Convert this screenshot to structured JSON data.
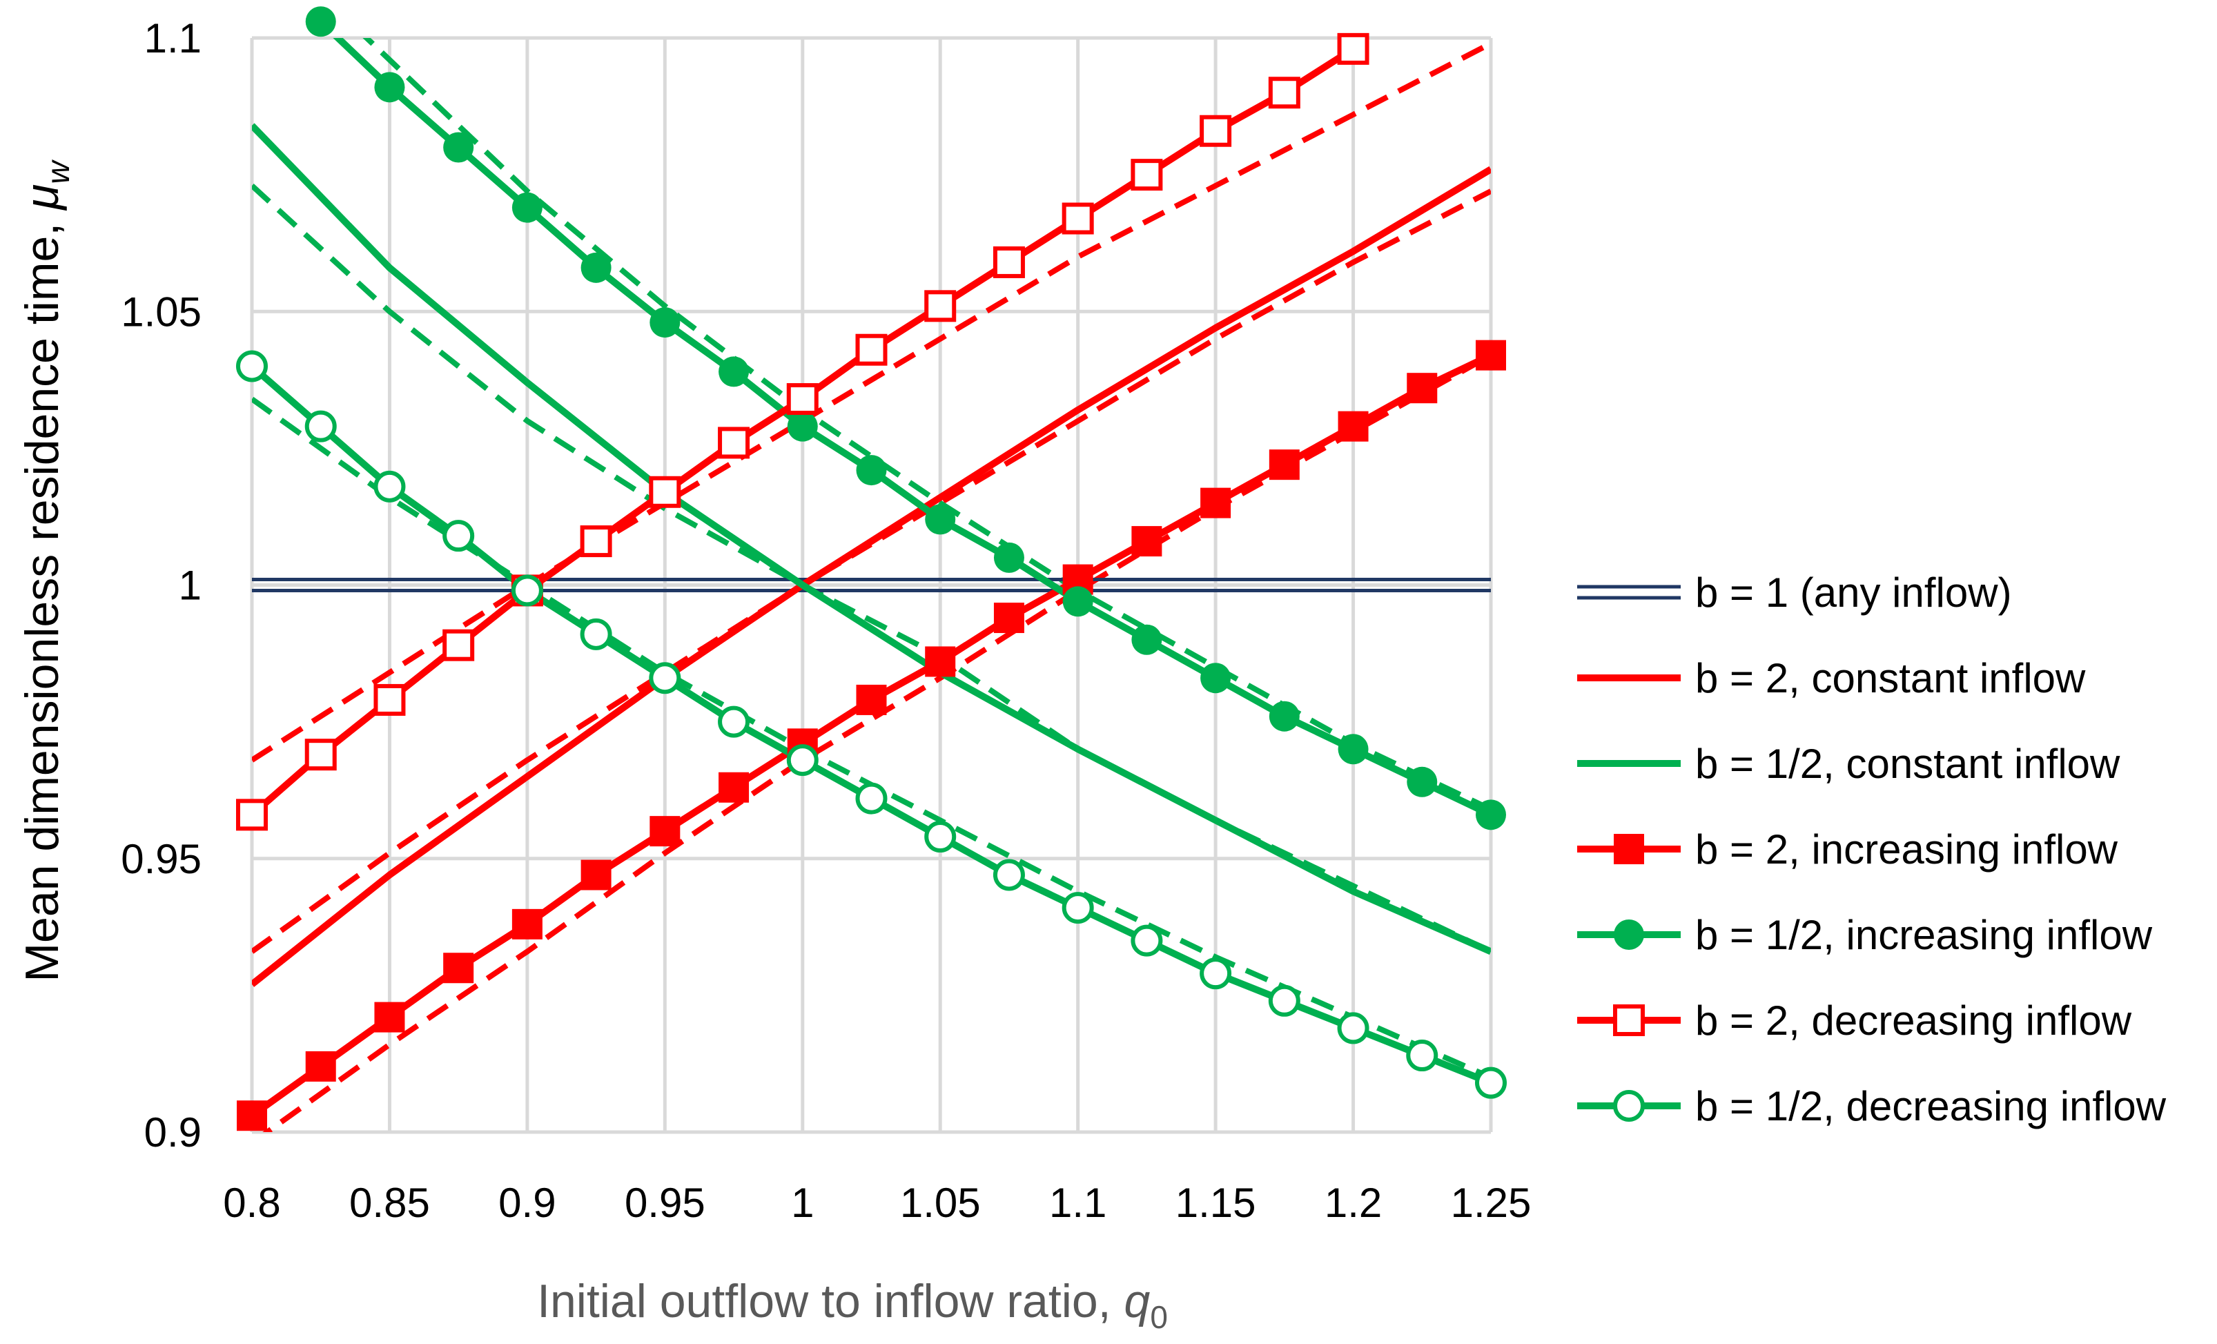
{
  "chart_data": {
    "type": "line",
    "xlabel_main": "Initial outflow to inflow ratio, ",
    "xlabel_symbol": "q",
    "xlabel_sub": "0",
    "ylabel_main": "Mean dimensionless residence time, ",
    "ylabel_symbol": "μ",
    "ylabel_sub": "w",
    "xlim": [
      0.8,
      1.25
    ],
    "ylim": [
      0.9,
      1.1
    ],
    "xticks": [
      0.8,
      0.85,
      0.9,
      0.95,
      1,
      1.05,
      1.1,
      1.15,
      1.2,
      1.25
    ],
    "xtick_labels": [
      "0.8",
      "0.85",
      "0.9",
      "0.95",
      "1",
      "1.05",
      "1.1",
      "1.15",
      "1.2",
      "1.25"
    ],
    "yticks": [
      0.9,
      0.95,
      1,
      1.05,
      1.1
    ],
    "ytick_labels": [
      "0.9",
      "0.95",
      "1",
      "1.05",
      "1.1"
    ],
    "grid": true,
    "legend_position": "right",
    "colors": {
      "red": "#ff0000",
      "green": "#00b050",
      "navy": "#203864",
      "grid": "#d9d9d9"
    },
    "series": [
      {
        "name": "b = 1 (any inflow)",
        "color": "#203864",
        "line": "double",
        "marker": "none",
        "x": [
          0.8,
          1.25
        ],
        "y": [
          1.0,
          1.0
        ]
      },
      {
        "name": "b = 2, constant inflow",
        "color": "#ff0000",
        "line": "solid",
        "marker": "none",
        "x": [
          0.8,
          0.85,
          0.9,
          0.95,
          1.0,
          1.05,
          1.1,
          1.15,
          1.2,
          1.25
        ],
        "y": [
          0.927,
          0.947,
          0.965,
          0.983,
          1.0,
          1.016,
          1.032,
          1.047,
          1.061,
          1.076
        ]
      },
      {
        "name": "b = 1/2, constant inflow",
        "color": "#00b050",
        "line": "solid",
        "marker": "none",
        "x": [
          0.8,
          0.85,
          0.9,
          0.95,
          1.0,
          1.05,
          1.1,
          1.15,
          1.2,
          1.25
        ],
        "y": [
          1.084,
          1.058,
          1.037,
          1.017,
          1.0,
          0.984,
          0.97,
          0.957,
          0.944,
          0.933
        ]
      },
      {
        "name": "b = 2, increasing inflow",
        "color": "#ff0000",
        "line": "solid",
        "marker": "filled-square",
        "x": [
          0.8,
          0.825,
          0.85,
          0.875,
          0.9,
          0.925,
          0.95,
          0.975,
          1.0,
          1.025,
          1.05,
          1.075,
          1.1,
          1.125,
          1.15,
          1.175,
          1.2,
          1.225,
          1.25
        ],
        "y": [
          0.903,
          0.912,
          0.921,
          0.93,
          0.938,
          0.947,
          0.955,
          0.963,
          0.971,
          0.979,
          0.986,
          0.994,
          1.001,
          1.008,
          1.015,
          1.022,
          1.029,
          1.036,
          1.042
        ]
      },
      {
        "name": "b = 1/2, increasing inflow",
        "color": "#00b050",
        "line": "solid",
        "marker": "filled-circle",
        "x": [
          0.8,
          0.825,
          0.85,
          0.875,
          0.9,
          0.925,
          0.95,
          0.975,
          1.0,
          1.025,
          1.05,
          1.075,
          1.1,
          1.125,
          1.15,
          1.175,
          1.2,
          1.225,
          1.25
        ],
        "y": [
          1.115,
          1.103,
          1.091,
          1.08,
          1.069,
          1.058,
          1.048,
          1.039,
          1.029,
          1.021,
          1.012,
          1.005,
          0.997,
          0.99,
          0.983,
          0.976,
          0.97,
          0.964,
          0.958
        ]
      },
      {
        "name": "b = 2, decreasing inflow",
        "color": "#ff0000",
        "line": "solid",
        "marker": "open-square",
        "x": [
          0.8,
          0.825,
          0.85,
          0.875,
          0.9,
          0.925,
          0.95,
          0.975,
          1.0,
          1.025,
          1.05,
          1.075,
          1.1,
          1.125,
          1.15,
          1.175,
          1.2
        ],
        "y": [
          0.958,
          0.969,
          0.979,
          0.989,
          0.999,
          1.008,
          1.017,
          1.026,
          1.034,
          1.043,
          1.051,
          1.059,
          1.067,
          1.075,
          1.083,
          1.09,
          1.098
        ]
      },
      {
        "name": "b = 1/2, decreasing inflow",
        "color": "#00b050",
        "line": "solid",
        "marker": "open-circle",
        "x": [
          0.8,
          0.825,
          0.85,
          0.875,
          0.9,
          0.925,
          0.95,
          0.975,
          1.0,
          1.025,
          1.05,
          1.075,
          1.1,
          1.125,
          1.15,
          1.175,
          1.2,
          1.225,
          1.25
        ],
        "y": [
          1.04,
          1.029,
          1.018,
          1.009,
          0.999,
          0.991,
          0.983,
          0.975,
          0.968,
          0.961,
          0.954,
          0.947,
          0.941,
          0.935,
          0.929,
          0.924,
          0.919,
          0.914,
          0.909
        ]
      },
      {
        "line": "dashed",
        "color": "#ff0000",
        "marker": "none",
        "x": [
          0.8,
          0.85,
          0.9,
          0.95,
          1.0,
          1.05,
          1.1,
          1.15,
          1.2,
          1.25
        ],
        "y": [
          0.933,
          0.951,
          0.968,
          0.984,
          1.0,
          1.015,
          1.03,
          1.045,
          1.059,
          1.072
        ]
      },
      {
        "line": "dashed",
        "color": "#00b050",
        "marker": "none",
        "x": [
          0.8,
          0.85,
          0.9,
          0.95,
          1.0,
          1.05,
          1.1,
          1.15,
          1.2,
          1.25
        ],
        "y": [
          1.073,
          1.05,
          1.03,
          1.014,
          1.0,
          0.987,
          0.97,
          0.957,
          0.945,
          0.933
        ]
      },
      {
        "line": "dashed",
        "color": "#ff0000",
        "marker": "none",
        "x": [
          0.8,
          0.85,
          0.9,
          0.95,
          1.0,
          1.05,
          1.1,
          1.15,
          1.2,
          1.25
        ],
        "y": [
          0.898,
          0.916,
          0.933,
          0.951,
          0.968,
          0.983,
          0.999,
          1.014,
          1.028,
          1.042
        ]
      },
      {
        "line": "dashed",
        "color": "#00b050",
        "marker": "none",
        "x": [
          0.8,
          0.85,
          0.9,
          0.95,
          1.0,
          1.05,
          1.1,
          1.15,
          1.2,
          1.25
        ],
        "y": [
          1.12,
          1.096,
          1.072,
          1.051,
          1.032,
          1.015,
          0.999,
          0.985,
          0.971,
          0.959
        ]
      },
      {
        "line": "dashed",
        "color": "#ff0000",
        "marker": "none",
        "x": [
          0.8,
          0.85,
          0.9,
          0.95,
          1.0,
          1.05,
          1.1,
          1.15,
          1.2,
          1.25
        ],
        "y": [
          0.968,
          0.984,
          1.0,
          1.015,
          1.03,
          1.045,
          1.06,
          1.073,
          1.086,
          1.099
        ]
      },
      {
        "line": "dashed",
        "color": "#00b050",
        "marker": "none",
        "x": [
          0.8,
          0.85,
          0.9,
          0.95,
          1.0,
          1.05,
          1.1,
          1.15,
          1.2,
          1.25
        ],
        "y": [
          1.034,
          1.016,
          1.0,
          0.984,
          0.97,
          0.957,
          0.944,
          0.932,
          0.921,
          0.91
        ]
      }
    ]
  }
}
